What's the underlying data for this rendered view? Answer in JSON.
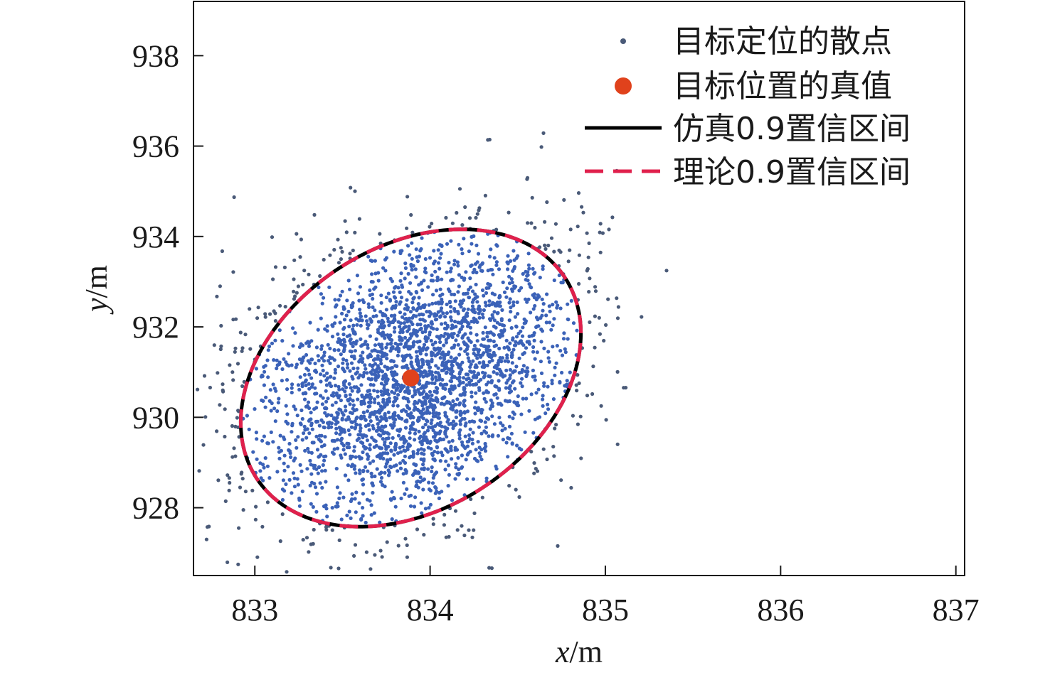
{
  "chart_data": {
    "type": "scatter",
    "title": "",
    "xlabel": {
      "var": "x",
      "unit": "/m"
    },
    "ylabel": {
      "var": "y",
      "unit": "/m"
    },
    "xlim": [
      832.65,
      837.05
    ],
    "ylim": [
      926.5,
      939.2
    ],
    "xticks": [
      833,
      834,
      835,
      836,
      837
    ],
    "yticks": [
      928,
      930,
      932,
      934,
      936,
      938
    ],
    "grid": false,
    "legend": {
      "position": "top-right"
    },
    "colors": {
      "scatter_inside": "#3b62b8",
      "scatter_outside": "#4a5a78",
      "true_value": "#e0421c",
      "sim_ellipse": "#000000",
      "theory_ellipse": "#e0204c"
    },
    "true_value": {
      "x": 833.89,
      "y": 930.87
    },
    "ellipse_params": {
      "center_x": 833.89,
      "center_y": 930.87,
      "a_x": 1.05,
      "b_y": 2.9,
      "rotation_deg": -33
    },
    "scatter": {
      "count": 3000,
      "sigma_major": 0.95,
      "sigma_minor": 0.43
    },
    "series": [
      {
        "name": "目标定位的散点",
        "kind": "scatter"
      },
      {
        "name": "目标位置的真值",
        "kind": "marker"
      },
      {
        "name": "仿真0.9置信区间",
        "kind": "line"
      },
      {
        "name": "理论0.9置信区间",
        "kind": "dashed-line"
      }
    ]
  }
}
